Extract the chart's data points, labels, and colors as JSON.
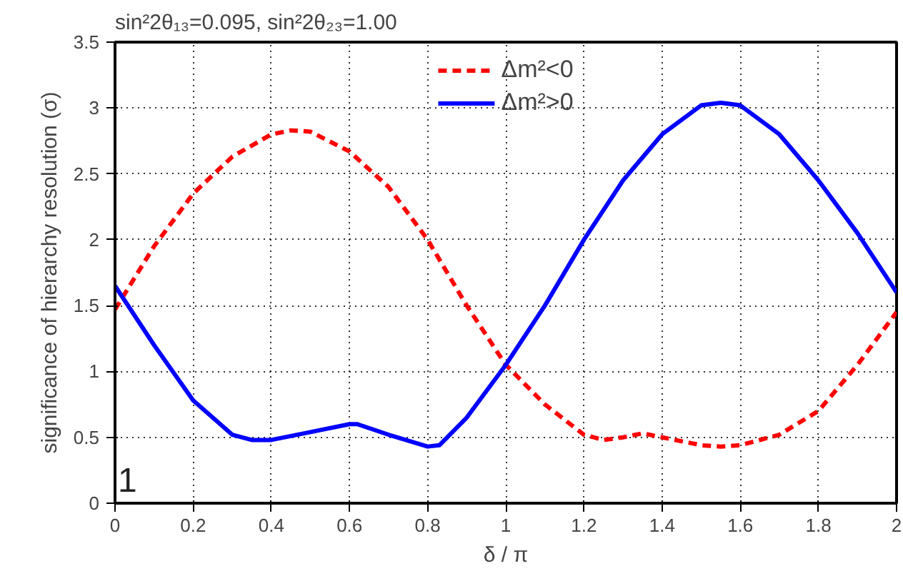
{
  "chart_data": {
    "type": "line",
    "title": "sin²2θ₁₃=0.095, sin²2θ₂₃=1.00",
    "xlabel": "δ / π",
    "ylabel": "significance of hierarchy resolution (σ)",
    "annotations": [
      "1"
    ],
    "xlim": [
      0,
      2
    ],
    "ylim": [
      0,
      3.5
    ],
    "xticks": [
      0,
      0.2,
      0.4,
      0.6,
      0.8,
      1,
      1.2,
      1.4,
      1.6,
      1.8,
      2
    ],
    "yticks": [
      0,
      0.5,
      1,
      1.5,
      2,
      2.5,
      3,
      3.5
    ],
    "grid": true,
    "legend": "top",
    "series": [
      {
        "name": "Δm²<0",
        "color": "#ff0000",
        "line_style": "dashed",
        "x": [
          0,
          0.1,
          0.2,
          0.3,
          0.4,
          0.45,
          0.5,
          0.6,
          0.7,
          0.8,
          0.9,
          1.0,
          1.1,
          1.2,
          1.25,
          1.3,
          1.35,
          1.4,
          1.5,
          1.55,
          1.6,
          1.7,
          1.8,
          1.9,
          2.0
        ],
        "values": [
          1.47,
          1.95,
          2.35,
          2.63,
          2.8,
          2.83,
          2.82,
          2.67,
          2.4,
          2.0,
          1.5,
          1.05,
          0.75,
          0.52,
          0.48,
          0.5,
          0.53,
          0.5,
          0.44,
          0.43,
          0.44,
          0.52,
          0.7,
          1.05,
          1.45
        ]
      },
      {
        "name": "Δm²>0",
        "color": "#0000ff",
        "line_style": "solid",
        "x": [
          0,
          0.1,
          0.2,
          0.3,
          0.35,
          0.4,
          0.5,
          0.6,
          0.62,
          0.7,
          0.8,
          0.83,
          0.9,
          1.0,
          1.1,
          1.2,
          1.3,
          1.4,
          1.5,
          1.55,
          1.6,
          1.7,
          1.8,
          1.9,
          2.0
        ],
        "values": [
          1.65,
          1.2,
          0.78,
          0.52,
          0.48,
          0.48,
          0.54,
          0.6,
          0.6,
          0.52,
          0.43,
          0.44,
          0.65,
          1.05,
          1.5,
          2.0,
          2.45,
          2.8,
          3.02,
          3.04,
          3.02,
          2.8,
          2.45,
          2.05,
          1.6
        ]
      }
    ]
  }
}
